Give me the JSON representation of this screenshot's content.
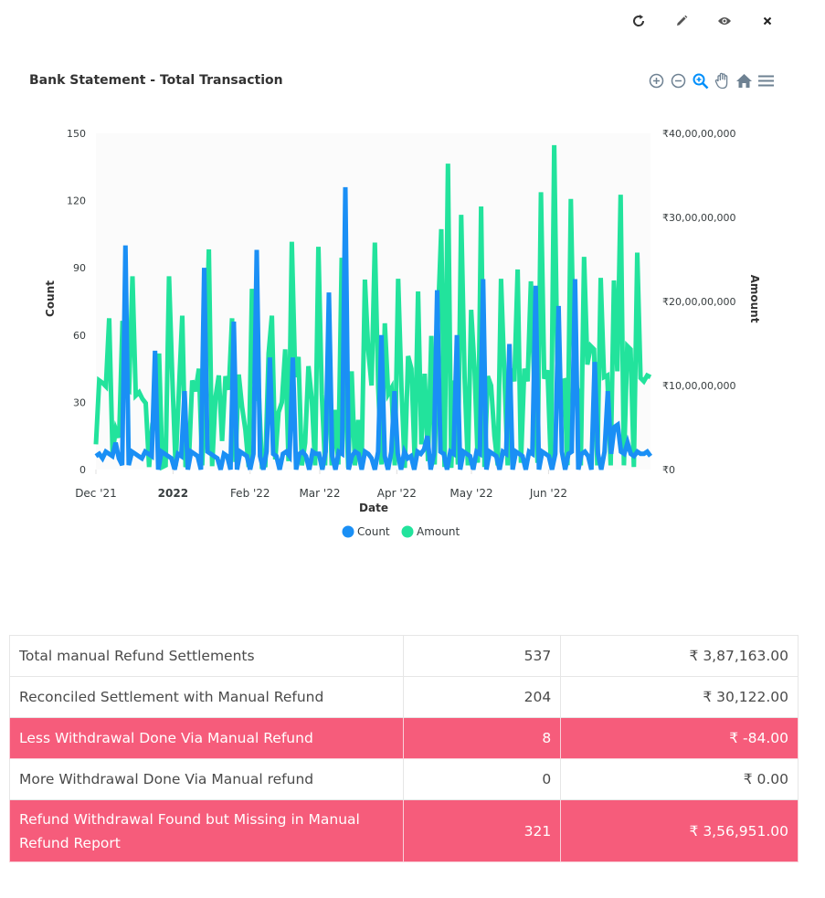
{
  "toolbar": {
    "icons": [
      "refresh-icon",
      "pencil-icon",
      "eye-icon",
      "close-icon"
    ]
  },
  "chart_header": {
    "title": "Bank Statement - Total Transaction",
    "tools": [
      "zoom-in-icon",
      "zoom-out-icon",
      "selection-zoom-icon",
      "pan-icon",
      "home-icon",
      "menu-icon"
    ]
  },
  "colors": {
    "count": "#1a8ff5",
    "amount": "#22e39c",
    "highlight_row": "#f65c7b"
  },
  "chart_data": {
    "type": "line",
    "title": "",
    "xlabel": "Date",
    "ylabel": "Count",
    "y2label": "Amount",
    "x_ticks": [
      "Dec '21",
      "2022",
      "Feb '22",
      "Mar '22",
      "Apr '22",
      "May '22",
      "Jun '22"
    ],
    "x_range": [
      "2021-12-01",
      "2022-07-12"
    ],
    "ylim": [
      0,
      150
    ],
    "y_ticks": [
      "0",
      "30",
      "60",
      "90",
      "120",
      "150"
    ],
    "y2lim": [
      0,
      400000000
    ],
    "y2_ticks": [
      "₹0",
      "₹10,00,00,000",
      "₹20,00,00,000",
      "₹30,00,00,000",
      "₹40,00,00,000"
    ],
    "legend": "bottom",
    "series": [
      {
        "name": "Count",
        "axis": "left",
        "values": [
          6,
          7,
          5,
          8,
          7,
          6,
          12,
          5,
          2,
          100,
          2,
          8,
          7,
          6,
          5,
          8,
          7,
          6,
          53,
          0,
          8,
          7,
          6,
          5,
          0,
          7,
          6,
          35,
          0,
          8,
          7,
          6,
          0,
          90,
          8,
          7,
          6,
          5,
          0,
          7,
          6,
          0,
          66,
          0,
          8,
          7,
          6,
          0,
          7,
          98,
          6,
          0,
          8,
          50,
          7,
          6,
          0,
          7,
          8,
          6,
          50,
          0,
          7,
          8,
          6,
          0,
          8,
          7,
          7,
          0,
          8,
          79,
          6,
          0,
          8,
          7,
          126,
          0,
          6,
          8,
          7,
          0,
          8,
          7,
          5,
          0,
          8,
          60,
          6,
          0,
          8,
          35,
          7,
          0,
          8,
          5,
          6,
          0,
          8,
          7,
          9,
          15,
          0,
          7,
          80,
          8,
          7,
          0,
          8,
          7,
          60,
          0,
          8,
          7,
          6,
          0,
          8,
          7,
          85,
          0,
          8,
          7,
          6,
          0,
          8,
          7,
          56,
          0,
          8,
          7,
          6,
          0,
          8,
          7,
          82,
          0,
          8,
          7,
          6,
          0,
          7,
          73,
          8,
          0,
          7,
          8,
          85,
          0,
          7,
          8,
          6,
          0,
          48,
          7,
          0,
          8,
          35,
          7,
          19,
          20,
          8,
          7,
          12,
          7,
          6,
          8,
          7,
          7,
          8,
          6
        ]
      },
      {
        "name": "Amount",
        "axis": "right",
        "values": [
          30000000,
          106000000,
          103000000,
          99000000,
          180000000,
          20000000,
          48000000,
          38000000,
          177000000,
          97000000,
          94000000,
          230000000,
          88000000,
          92000000,
          84000000,
          79000000,
          3000000,
          54000000,
          66000000,
          138000000,
          3000000,
          5000000,
          230000000,
          109000000,
          4000000,
          96000000,
          183000000,
          3000000,
          12000000,
          106000000,
          93000000,
          120000000,
          5000000,
          106000000,
          262000000,
          4000000,
          86000000,
          112000000,
          34000000,
          111000000,
          95000000,
          180000000,
          9000000,
          113000000,
          75000000,
          47000000,
          3000000,
          215000000,
          82000000,
          96000000,
          4000000,
          5000000,
          138000000,
          183000000,
          12000000,
          68000000,
          80000000,
          143000000,
          10000000,
          271000000,
          110000000,
          134000000,
          5000000,
          32000000,
          123000000,
          83000000,
          5000000,
          265000000,
          90000000,
          5000000,
          132000000,
          5000000,
          71000000,
          6000000,
          252000000,
          100000000,
          2000000,
          117000000,
          5000000,
          59000000,
          6000000,
          226000000,
          143000000,
          100000000,
          270000000,
          97000000,
          6000000,
          174000000,
          90000000,
          97000000,
          5000000,
          227000000,
          98000000,
          2000000,
          135000000,
          120000000,
          12000000,
          212000000,
          30000000,
          114000000,
          10000000,
          159000000,
          6000000,
          181000000,
          286000000,
          3000000,
          364000000,
          2000000,
          106000000,
          6000000,
          303000000,
          110000000,
          5000000,
          190000000,
          120000000,
          8000000,
          313000000,
          3000000,
          111000000,
          100000000,
          40000000,
          5000000,
          227000000,
          111000000,
          5000000,
          120000000,
          105000000,
          238000000,
          8000000,
          120000000,
          105000000,
          224000000,
          98000000,
          8000000,
          330000000,
          108000000,
          118000000,
          5000000,
          386000000,
          111000000,
          105000000,
          106000000,
          5000000,
          322000000,
          113000000,
          95000000,
          5000000,
          253000000,
          125000000,
          147000000,
          143000000,
          5000000,
          228000000,
          110000000,
          112000000,
          5000000,
          225000000,
          117000000,
          327000000,
          5000000,
          147000000,
          143000000,
          3000000,
          258000000,
          109000000,
          105000000,
          112000000,
          110000000
        ]
      }
    ]
  },
  "table": {
    "rows": [
      {
        "label": "Total manual Refund Settlements",
        "count": "537",
        "amount": "₹ 3,87,163.00",
        "highlight": false,
        "tall": false
      },
      {
        "label": "Reconciled Settlement with Manual Refund",
        "count": "204",
        "amount": "₹ 30,122.00",
        "highlight": false,
        "tall": false
      },
      {
        "label": "Less Withdrawal Done Via Manual Refund",
        "count": "8",
        "amount": "₹ -84.00",
        "highlight": true,
        "tall": false
      },
      {
        "label": "More Withdrawal Done Via Manual refund",
        "count": "0",
        "amount": "₹ 0.00",
        "highlight": false,
        "tall": false
      },
      {
        "label": "Refund Withdrawal Found but Missing in Manual Refund Report",
        "count": "321",
        "amount": "₹ 3,56,951.00",
        "highlight": true,
        "tall": true
      }
    ]
  }
}
